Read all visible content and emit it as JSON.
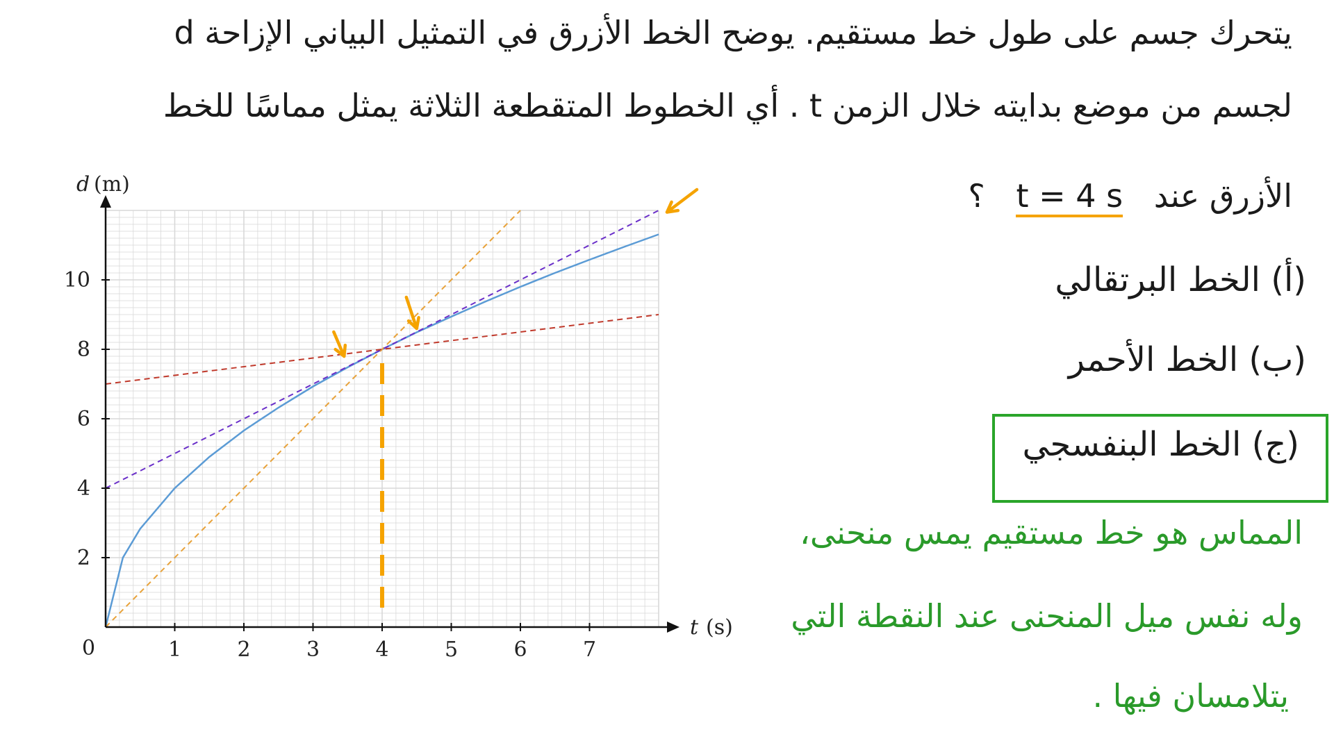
{
  "question": {
    "line1": "يتحرك جسم على طول خط مستقيم. يوضح الخط الأزرق في التمثيل البياني الإزاحة d",
    "line2": "لجسم من موضع بدايته خلال الزمن t . أي الخطوط المتقطعة الثلاثة يمثل مماسًا للخط",
    "line3": "الأزرق عند",
    "condition": "t = 4 s",
    "qmark": "؟"
  },
  "options": [
    {
      "label": "(أ) الخط البرتقالي"
    },
    {
      "label": "(ب) الخط الأحمر"
    },
    {
      "label": "(ج) الخط البنفسجي"
    }
  ],
  "explanation": {
    "line1": "المماس هو خط مستقيم يمس منحنى،",
    "line2": "وله نفس ميل المنحنى عند النقطة التي",
    "line3": "يتلامسان فيها ."
  },
  "colors": {
    "blue_curve": "#5b9bd5",
    "orange_line": "#e8a23a",
    "red_line": "#c0392b",
    "purple_line": "#6a2fc9",
    "annotation_orange": "#f5a300",
    "answer_green": "#2aa52a",
    "grid": "#d8d8d8"
  },
  "chart_data": {
    "type": "line",
    "xlabel_var": "t",
    "xlabel_unit": "(s)",
    "ylabel_var": "d",
    "ylabel_unit": "(m)",
    "origin_label": "0",
    "xlim": [
      0,
      8
    ],
    "ylim": [
      0,
      12
    ],
    "x_ticks": [
      1,
      2,
      3,
      4,
      5,
      6,
      7
    ],
    "y_ticks": [
      2,
      4,
      6,
      8,
      10
    ],
    "grid": true,
    "series": [
      {
        "key": "blue",
        "style": "solid",
        "x": [
          0,
          0.25,
          0.5,
          1,
          1.5,
          2,
          2.5,
          3,
          3.5,
          4,
          4.5,
          5,
          5.5,
          6,
          6.5,
          7,
          7.5,
          8
        ],
        "y": [
          0,
          2.0,
          2.83,
          4.0,
          4.9,
          5.66,
          6.32,
          6.93,
          7.48,
          8.0,
          8.49,
          8.94,
          9.38,
          9.8,
          10.2,
          10.58,
          10.95,
          11.31
        ]
      },
      {
        "key": "orange",
        "style": "dashed",
        "x": [
          0,
          6
        ],
        "y": [
          0,
          12
        ]
      },
      {
        "key": "purple",
        "style": "dashed",
        "x": [
          0,
          8
        ],
        "y": [
          4,
          12
        ]
      },
      {
        "key": "red",
        "style": "dashed",
        "x": [
          0,
          8
        ],
        "y": [
          7,
          9
        ]
      }
    ],
    "annotations": {
      "vertical_marker_x": 4,
      "intersection": [
        4,
        8
      ]
    }
  }
}
